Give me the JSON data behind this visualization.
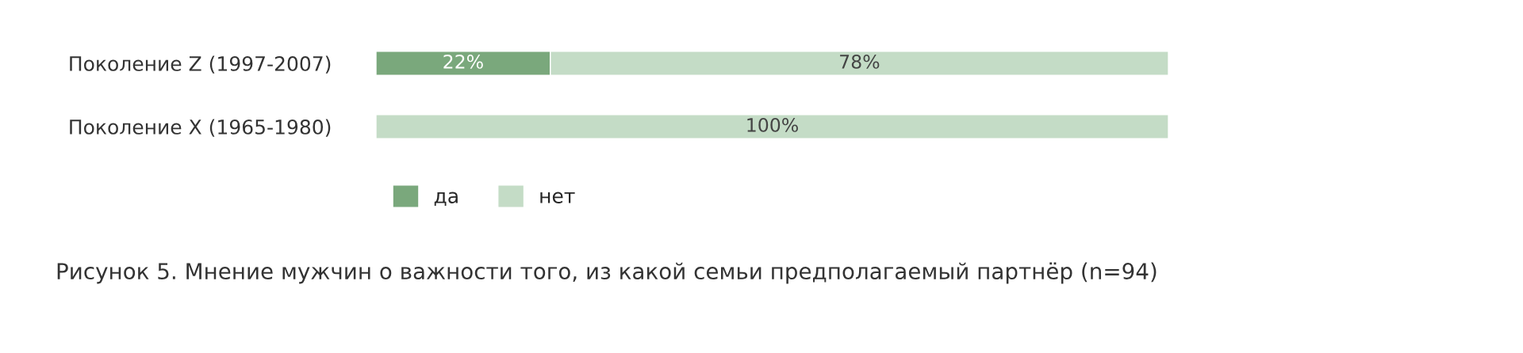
{
  "chart_data": {
    "type": "bar",
    "orientation": "horizontal",
    "stacked": true,
    "title": "Рисунок 5. Мнение мужчин о важности того, из какой семьи предполагаемый партнёр (n=94)",
    "categories": [
      "Поколение Z (1997-2007)",
      "Поколение X (1965-1980)"
    ],
    "series": [
      {
        "name": "да",
        "color": "#7aa87c",
        "values": [
          22,
          0
        ],
        "value_labels": [
          "22%",
          null
        ]
      },
      {
        "name": "нет",
        "color": "#c4dcc6",
        "values": [
          78,
          100
        ],
        "value_labels": [
          "78%",
          "100%"
        ]
      }
    ],
    "legend": "bottom"
  }
}
